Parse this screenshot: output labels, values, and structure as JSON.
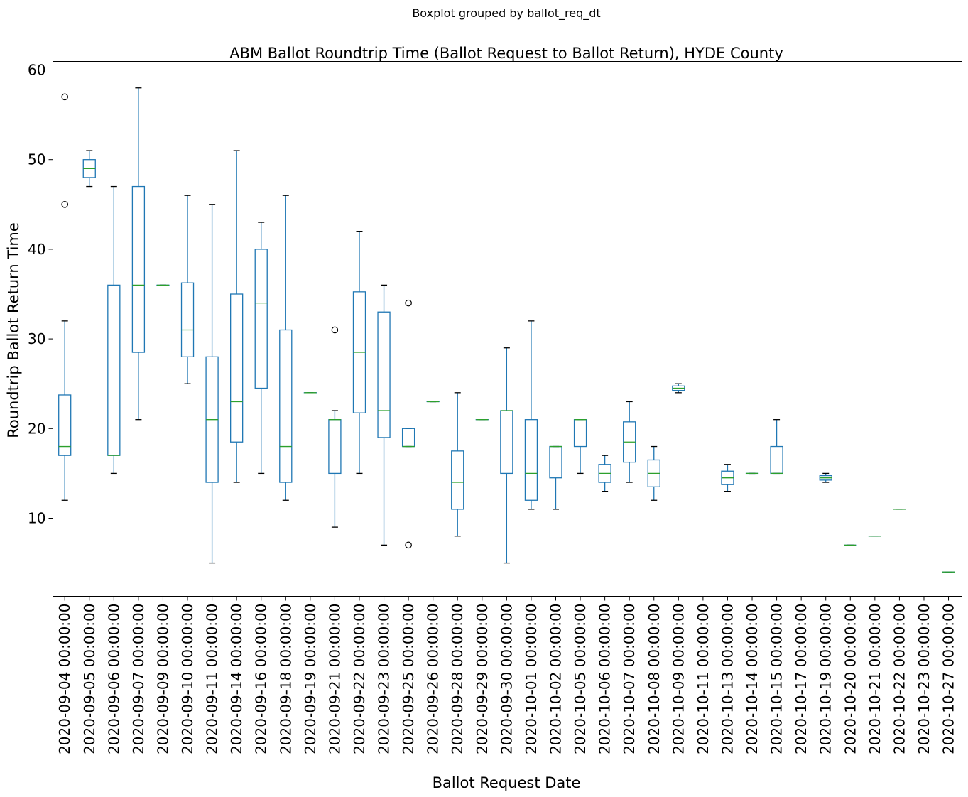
{
  "chart_data": {
    "type": "boxplot",
    "suptitle": "Boxplot grouped by ballot_req_dt",
    "title": "ABM Ballot Roundtrip Time (Ballot Request to Ballot Return), HYDE County",
    "xlabel": "Ballot Request Date",
    "ylabel": "Roundtrip Ballot Return Time",
    "ylim": [
      1.3,
      60.7
    ],
    "yticks": [
      10,
      20,
      30,
      40,
      50,
      60
    ],
    "grid": false,
    "colors": {
      "box": "#1f77b4",
      "median": "#2ca02c",
      "whisker": "#1f77b4",
      "cap": "#000000",
      "flier": "#000000"
    },
    "categories": [
      "2020-09-04 00:00:00",
      "2020-09-05 00:00:00",
      "2020-09-06 00:00:00",
      "2020-09-07 00:00:00",
      "2020-09-09 00:00:00",
      "2020-09-10 00:00:00",
      "2020-09-11 00:00:00",
      "2020-09-14 00:00:00",
      "2020-09-16 00:00:00",
      "2020-09-18 00:00:00",
      "2020-09-19 00:00:00",
      "2020-09-21 00:00:00",
      "2020-09-22 00:00:00",
      "2020-09-23 00:00:00",
      "2020-09-25 00:00:00",
      "2020-09-26 00:00:00",
      "2020-09-28 00:00:00",
      "2020-09-29 00:00:00",
      "2020-09-30 00:00:00",
      "2020-10-01 00:00:00",
      "2020-10-02 00:00:00",
      "2020-10-05 00:00:00",
      "2020-10-06 00:00:00",
      "2020-10-07 00:00:00",
      "2020-10-08 00:00:00",
      "2020-10-09 00:00:00",
      "2020-10-11 00:00:00",
      "2020-10-13 00:00:00",
      "2020-10-14 00:00:00",
      "2020-10-15 00:00:00",
      "2020-10-17 00:00:00",
      "2020-10-19 00:00:00",
      "2020-10-20 00:00:00",
      "2020-10-21 00:00:00",
      "2020-10-22 00:00:00",
      "2020-10-23 00:00:00",
      "2020-10-27 00:00:00"
    ],
    "boxes": [
      {
        "lw": 12,
        "q1": 17,
        "med": 18,
        "q3": 23.75,
        "hw": 32,
        "fliers": [
          45,
          57
        ]
      },
      {
        "lw": 47,
        "q1": 48,
        "med": 49,
        "q3": 50,
        "hw": 51,
        "fliers": []
      },
      {
        "lw": 15,
        "q1": 17,
        "med": 17,
        "q3": 36,
        "hw": 47,
        "fliers": []
      },
      {
        "lw": 21,
        "q1": 28.5,
        "med": 36,
        "q3": 47,
        "hw": 58,
        "fliers": []
      },
      {
        "lw": 36,
        "q1": 36,
        "med": 36,
        "q3": 36,
        "hw": 36,
        "fliers": []
      },
      {
        "lw": 25,
        "q1": 28,
        "med": 31,
        "q3": 36.25,
        "hw": 46,
        "fliers": []
      },
      {
        "lw": 5,
        "q1": 14,
        "med": 21,
        "q3": 28,
        "hw": 45,
        "fliers": []
      },
      {
        "lw": 14,
        "q1": 18.5,
        "med": 23,
        "q3": 35,
        "hw": 51,
        "fliers": []
      },
      {
        "lw": 15,
        "q1": 24.5,
        "med": 34,
        "q3": 40,
        "hw": 43,
        "fliers": []
      },
      {
        "lw": 12,
        "q1": 14,
        "med": 18,
        "q3": 31,
        "hw": 46,
        "fliers": []
      },
      {
        "lw": 24,
        "q1": 24,
        "med": 24,
        "q3": 24,
        "hw": 24,
        "fliers": []
      },
      {
        "lw": 9,
        "q1": 15,
        "med": 21,
        "q3": 21,
        "hw": 22,
        "fliers": [
          31
        ]
      },
      {
        "lw": 15,
        "q1": 21.75,
        "med": 28.5,
        "q3": 35.25,
        "hw": 42,
        "fliers": []
      },
      {
        "lw": 7,
        "q1": 19,
        "med": 22,
        "q3": 33,
        "hw": 36,
        "fliers": []
      },
      {
        "lw": 18,
        "q1": 18,
        "med": 18,
        "q3": 20,
        "hw": 20,
        "fliers": [
          7,
          34
        ]
      },
      {
        "lw": 23,
        "q1": 23,
        "med": 23,
        "q3": 23,
        "hw": 23,
        "fliers": []
      },
      {
        "lw": 8,
        "q1": 11,
        "med": 14,
        "q3": 17.5,
        "hw": 24,
        "fliers": []
      },
      {
        "lw": 21,
        "q1": 21,
        "med": 21,
        "q3": 21,
        "hw": 21,
        "fliers": []
      },
      {
        "lw": 5,
        "q1": 15,
        "med": 22,
        "q3": 22,
        "hw": 29,
        "fliers": []
      },
      {
        "lw": 11,
        "q1": 12,
        "med": 15,
        "q3": 21,
        "hw": 32,
        "fliers": []
      },
      {
        "lw": 11,
        "q1": 14.5,
        "med": 18,
        "q3": 18,
        "hw": 18,
        "fliers": []
      },
      {
        "lw": 15,
        "q1": 18,
        "med": 21,
        "q3": 21,
        "hw": 21,
        "fliers": []
      },
      {
        "lw": 13,
        "q1": 14,
        "med": 15,
        "q3": 16,
        "hw": 17,
        "fliers": []
      },
      {
        "lw": 14,
        "q1": 16.25,
        "med": 18.5,
        "q3": 20.75,
        "hw": 23,
        "fliers": []
      },
      {
        "lw": 12,
        "q1": 13.5,
        "med": 15,
        "q3": 16.5,
        "hw": 18,
        "fliers": []
      },
      {
        "lw": 24,
        "q1": 24.25,
        "med": 24.5,
        "q3": 24.75,
        "hw": 25,
        "fliers": []
      },
      null,
      {
        "lw": 13,
        "q1": 13.75,
        "med": 14.5,
        "q3": 15.25,
        "hw": 16,
        "fliers": []
      },
      {
        "lw": 15,
        "q1": 15,
        "med": 15,
        "q3": 15,
        "hw": 15,
        "fliers": []
      },
      {
        "lw": 15,
        "q1": 15,
        "med": 15,
        "q3": 18,
        "hw": 21,
        "fliers": []
      },
      null,
      {
        "lw": 14,
        "q1": 14.25,
        "med": 14.5,
        "q3": 14.75,
        "hw": 15,
        "fliers": []
      },
      {
        "lw": 7,
        "q1": 7,
        "med": 7,
        "q3": 7,
        "hw": 7,
        "fliers": []
      },
      {
        "lw": 8,
        "q1": 8,
        "med": 8,
        "q3": 8,
        "hw": 8,
        "fliers": []
      },
      {
        "lw": 11,
        "q1": 11,
        "med": 11,
        "q3": 11,
        "hw": 11,
        "fliers": []
      },
      null,
      {
        "lw": 4,
        "q1": 4,
        "med": 4,
        "q3": 4,
        "hw": 4,
        "fliers": []
      }
    ]
  }
}
